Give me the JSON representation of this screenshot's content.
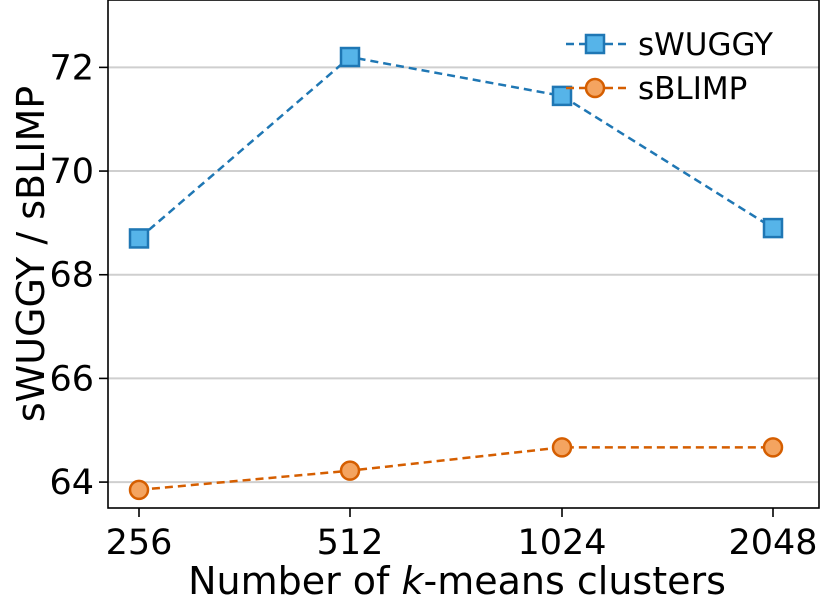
{
  "chart_data": {
    "type": "line",
    "x": [
      256,
      512,
      1024,
      2048
    ],
    "x_scale": "log2",
    "x_tick_labels": [
      "256",
      "512",
      "1024",
      "2048"
    ],
    "xlabel": {
      "prefix": "Number of ",
      "italic": "k",
      "suffix": "-means clusters"
    },
    "ylabel": "sWUGGY / sBLIMP",
    "ylim": [
      63.5,
      73.3
    ],
    "y_ticks": [
      64,
      66,
      68,
      70,
      72
    ],
    "y_tick_labels": [
      "64",
      "66",
      "68",
      "70",
      "72"
    ],
    "grid": "horizontal",
    "legend_position": "top-right",
    "series": [
      {
        "name": "sWUGGY",
        "values": [
          68.7,
          72.2,
          71.45,
          68.9
        ],
        "marker": "square",
        "line": "dashed",
        "line_color": "#1f77b4",
        "marker_fill": "#56b4e9",
        "marker_edge": "#1f77b4"
      },
      {
        "name": "sBLIMP",
        "values": [
          63.85,
          64.22,
          64.67,
          64.67
        ],
        "marker": "circle",
        "line": "dashed",
        "line_color": "#d55e00",
        "marker_fill": "#f4a460",
        "marker_edge": "#d55e00"
      }
    ]
  }
}
